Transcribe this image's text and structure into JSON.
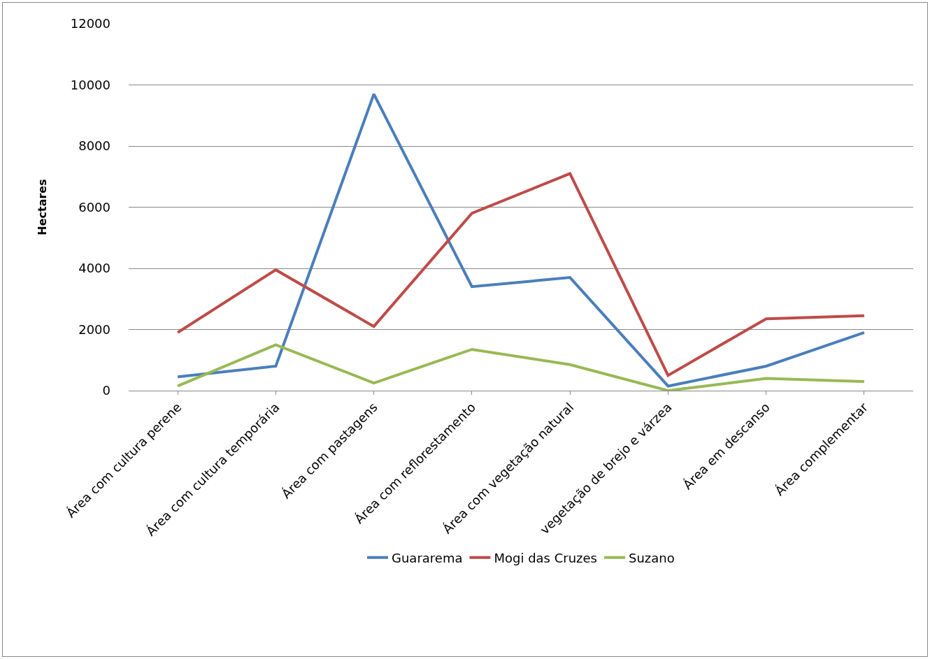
{
  "chart_data": {
    "type": "line",
    "ylabel": "Hectares",
    "categories": [
      "Área com cultura perene",
      "Área com cultura temporária",
      "Área com pastagens",
      "Área com reflorestamento",
      "Área com vegetação natural",
      "vegetação de brejo e várzea",
      "Área em descanso",
      "Área complementar"
    ],
    "series": [
      {
        "name": "Guararema",
        "color": "#4a7ebb",
        "values": [
          450,
          800,
          9700,
          3400,
          3700,
          150,
          800,
          1900
        ]
      },
      {
        "name": "Mogi das Cruzes",
        "color": "#be4b48",
        "values": [
          1900,
          3950,
          2100,
          5800,
          7100,
          500,
          2350,
          2450
        ]
      },
      {
        "name": "Suzano",
        "color": "#98b954",
        "values": [
          150,
          1500,
          250,
          1350,
          850,
          0,
          400,
          300
        ]
      }
    ],
    "ylim": [
      0,
      12000
    ],
    "yticks": [
      0,
      2000,
      4000,
      6000,
      8000,
      10000,
      12000
    ],
    "grid": "y",
    "legend": "bottom",
    "marker": "none",
    "line_style": "solid"
  }
}
